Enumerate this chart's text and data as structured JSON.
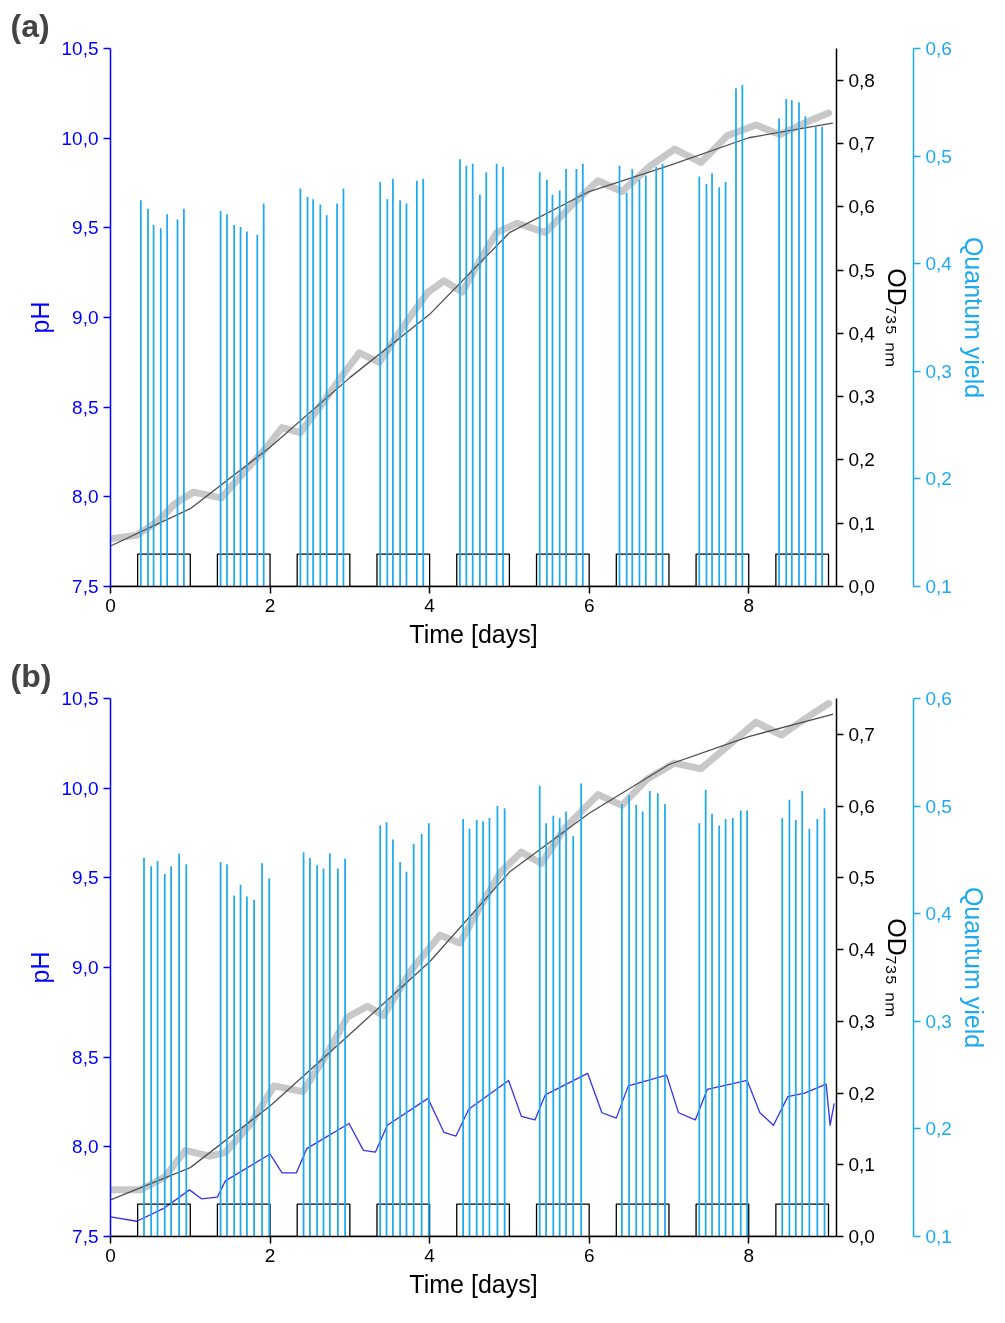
{
  "chart_data": [
    {
      "type": "line",
      "title": "(a)",
      "xlabel": "Time [days]",
      "ylabel": "pH",
      "y2label": "OD₇₃₅ ₙₘ",
      "y3label": "Quantum yield",
      "xlim": [
        0,
        9.1
      ],
      "xticks": [
        0,
        2,
        4,
        6,
        8
      ],
      "ylim": [
        7.5,
        10.5
      ],
      "yticks": [
        {
          "value": 7.5,
          "label": "7,5"
        },
        {
          "value": 8.0,
          "label": "8,0"
        },
        {
          "value": 8.5,
          "label": "8,5"
        },
        {
          "value": 9.0,
          "label": "9,0"
        },
        {
          "value": 9.5,
          "label": "9,5"
        },
        {
          "value": 10.0,
          "label": "10,0"
        },
        {
          "value": 10.5,
          "label": "10,5"
        }
      ],
      "y2lim": [
        0,
        0.85
      ],
      "y2ticks": [
        {
          "value": 0,
          "label": "0,0"
        },
        {
          "value": 0.1,
          "label": "0,1"
        },
        {
          "value": 0.2,
          "label": "0,2"
        },
        {
          "value": 0.3,
          "label": "0,3"
        },
        {
          "value": 0.4,
          "label": "0,4"
        },
        {
          "value": 0.5,
          "label": "0,5"
        },
        {
          "value": 0.6,
          "label": "0,6"
        },
        {
          "value": 0.7,
          "label": "0,7"
        },
        {
          "value": 0.8,
          "label": "0,8"
        }
      ],
      "y3lim": [
        0.1,
        0.6
      ],
      "y3ticks": [
        {
          "value": 0.1,
          "label": "0,1"
        },
        {
          "value": 0.2,
          "label": "0,2"
        },
        {
          "value": 0.3,
          "label": "0,3"
        },
        {
          "value": 0.4,
          "label": "0,4"
        },
        {
          "value": 0.5,
          "label": "0,5"
        },
        {
          "value": 0.6,
          "label": "0,6"
        }
      ],
      "series": [
        {
          "type": "bar",
          "axis": "y3",
          "color": "#1eaaf1",
          "x": [
            0.38,
            0.47,
            0.54,
            0.63,
            0.71,
            0.84,
            0.92,
            1.38,
            1.46,
            1.55,
            1.63,
            1.71,
            1.84,
            1.92,
            2.38,
            2.47,
            2.54,
            2.63,
            2.71,
            2.84,
            2.92,
            3.38,
            3.47,
            3.54,
            3.63,
            3.71,
            3.84,
            3.92,
            4.38,
            4.46,
            4.54,
            4.63,
            4.71,
            4.84,
            4.92,
            5.38,
            5.47,
            5.54,
            5.63,
            5.71,
            5.84,
            5.92,
            6.38,
            6.47,
            6.54,
            6.63,
            6.71,
            6.84,
            6.92,
            7.38,
            7.47,
            7.54,
            7.63,
            7.71,
            7.84,
            7.92,
            8.38,
            8.47,
            8.54,
            8.63,
            8.71,
            8.84,
            8.92
          ],
          "values": [
            0.459,
            0.451,
            0.436,
            0.433,
            0.446,
            0.441,
            0.451,
            0.449,
            0.446,
            0.436,
            0.434,
            0.43,
            0.427,
            0.456,
            0.47,
            0.462,
            0.46,
            0.455,
            0.445,
            0.456,
            0.47,
            0.476,
            0.46,
            0.479,
            0.459,
            0.456,
            0.477,
            0.479,
            0.497,
            0.491,
            0.493,
            0.464,
            0.485,
            0.493,
            0.49,
            0.485,
            0.478,
            0.464,
            0.468,
            0.488,
            0.488,
            0.493,
            0.491,
            0.466,
            0.488,
            0.478,
            0.482,
            0.49,
            0.493,
            0.481,
            0.474,
            0.484,
            0.471,
            0.476,
            0.563,
            0.566,
            0.535,
            0.553,
            0.552,
            0.55,
            0.537,
            0.527,
            0.527
          ]
        },
        {
          "axis": "y2",
          "color": "#c8c8c8",
          "x": [
            0.03,
            0.33,
            0.58,
            0.81,
            1.04,
            1.39,
            1.7,
            1.95,
            2.15,
            2.38,
            2.66,
            2.92,
            3.12,
            3.37,
            3.68,
            3.98,
            4.18,
            4.41,
            4.64,
            4.84,
            5.1,
            5.45,
            5.81,
            6.11,
            6.41,
            6.77,
            7.07,
            7.4,
            7.73,
            8.09,
            8.39,
            8.75,
            9.0
          ],
          "values": [
            0.076,
            0.081,
            0.102,
            0.131,
            0.149,
            0.14,
            0.184,
            0.219,
            0.251,
            0.243,
            0.29,
            0.336,
            0.369,
            0.354,
            0.413,
            0.465,
            0.483,
            0.465,
            0.518,
            0.559,
            0.574,
            0.559,
            0.606,
            0.641,
            0.624,
            0.665,
            0.691,
            0.67,
            0.712,
            0.729,
            0.714,
            0.735,
            0.748
          ]
        },
        {
          "axis": "y2",
          "color": "#505050",
          "x": [
            0,
            1,
            2,
            3,
            4,
            5,
            6,
            7,
            8,
            9.05
          ],
          "values": [
            0.064,
            0.123,
            0.22,
            0.33,
            0.43,
            0.559,
            0.624,
            0.665,
            0.709,
            0.732
          ]
        },
        {
          "axis": "y",
          "color": "#000000",
          "x": [
            0,
            0.34,
            0.34,
            1,
            1,
            1.34,
            1.34,
            2,
            2,
            2.34,
            2.34,
            3,
            3,
            3.34,
            3.34,
            4,
            4,
            4.34,
            4.34,
            5,
            5,
            5.34,
            5.34,
            6,
            6,
            6.34,
            6.34,
            7,
            7,
            7.34,
            7.34,
            8,
            8,
            8.34,
            8.34,
            9,
            9
          ],
          "values": [
            7.5,
            7.5,
            7.68,
            7.68,
            7.5,
            7.5,
            7.68,
            7.68,
            7.5,
            7.5,
            7.68,
            7.68,
            7.5,
            7.5,
            7.68,
            7.68,
            7.5,
            7.5,
            7.68,
            7.68,
            7.5,
            7.5,
            7.68,
            7.68,
            7.5,
            7.5,
            7.68,
            7.68,
            7.5,
            7.5,
            7.68,
            7.68,
            7.5,
            7.5,
            7.68,
            7.68,
            7.5
          ]
        }
      ]
    },
    {
      "type": "line",
      "title": "(b)",
      "xlabel": "Time [days]",
      "ylabel": "pH",
      "y2label": "OD₇₃₅ ₙₘ",
      "y3label": "Quantum yield",
      "xlim": [
        0,
        9.1
      ],
      "xticks": [
        0,
        2,
        4,
        6,
        8
      ],
      "ylim": [
        7.5,
        10.5
      ],
      "yticks": [
        {
          "value": 7.5,
          "label": "7,5"
        },
        {
          "value": 8.0,
          "label": "8,0"
        },
        {
          "value": 8.5,
          "label": "8,5"
        },
        {
          "value": 9.0,
          "label": "9,0"
        },
        {
          "value": 9.5,
          "label": "9,5"
        },
        {
          "value": 10.0,
          "label": "10,0"
        },
        {
          "value": 10.5,
          "label": "10,5"
        }
      ],
      "y2lim": [
        0,
        0.75
      ],
      "y2ticks": [
        {
          "value": 0,
          "label": "0,0"
        },
        {
          "value": 0.1,
          "label": "0,1"
        },
        {
          "value": 0.2,
          "label": "0,2"
        },
        {
          "value": 0.3,
          "label": "0,3"
        },
        {
          "value": 0.4,
          "label": "0,4"
        },
        {
          "value": 0.5,
          "label": "0,5"
        },
        {
          "value": 0.6,
          "label": "0,6"
        },
        {
          "value": 0.7,
          "label": "0,7"
        }
      ],
      "y3lim": [
        0.1,
        0.6
      ],
      "y3ticks": [
        {
          "value": 0.1,
          "label": "0,1"
        },
        {
          "value": 0.2,
          "label": "0,2"
        },
        {
          "value": 0.3,
          "label": "0,3"
        },
        {
          "value": 0.4,
          "label": "0,4"
        },
        {
          "value": 0.5,
          "label": "0,5"
        },
        {
          "value": 0.6,
          "label": "0,6"
        }
      ],
      "series": [
        {
          "type": "bar",
          "axis": "y3",
          "color": "#1eaaf1",
          "x": [
            0.42,
            0.51,
            0.59,
            0.68,
            0.76,
            0.86,
            0.95,
            1.38,
            1.46,
            1.55,
            1.63,
            1.71,
            1.8,
            1.9,
            1.99,
            2.42,
            2.5,
            2.59,
            2.67,
            2.75,
            2.85,
            2.94,
            3.38,
            3.46,
            3.54,
            3.63,
            3.71,
            3.8,
            3.9,
            3.99,
            4.42,
            4.5,
            4.59,
            4.67,
            4.75,
            4.85,
            4.94,
            5.38,
            5.46,
            5.55,
            5.63,
            5.71,
            5.8,
            5.9,
            6.41,
            6.5,
            6.59,
            6.67,
            6.76,
            6.86,
            6.95,
            7.38,
            7.46,
            7.54,
            7.63,
            7.71,
            7.8,
            7.9,
            7.98,
            8.42,
            8.51,
            8.59,
            8.67,
            8.76,
            8.86,
            8.95
          ],
          "values": [
            0.452,
            0.444,
            0.449,
            0.437,
            0.444,
            0.456,
            0.446,
            0.448,
            0.446,
            0.417,
            0.427,
            0.416,
            0.413,
            0.447,
            0.433,
            0.457,
            0.452,
            0.445,
            0.442,
            0.456,
            0.442,
            0.451,
            0.482,
            0.485,
            0.469,
            0.448,
            0.439,
            0.465,
            0.474,
            0.484,
            0.488,
            0.479,
            0.487,
            0.486,
            0.489,
            0.5,
            0.498,
            0.519,
            0.484,
            0.491,
            0.489,
            0.495,
            0.472,
            0.521,
            0.502,
            0.51,
            0.501,
            0.495,
            0.514,
            0.512,
            0.502,
            0.484,
            0.515,
            0.493,
            0.482,
            0.488,
            0.489,
            0.496,
            0.496,
            0.489,
            0.506,
            0.487,
            0.514,
            0.479,
            0.488,
            0.498
          ]
        },
        {
          "axis": "y2",
          "color": "#c8c8c8",
          "x": [
            0.03,
            0.38,
            0.68,
            0.94,
            1.24,
            1.44,
            1.75,
            2.05,
            2.41,
            2.71,
            2.97,
            3.22,
            3.42,
            3.78,
            4.13,
            4.38,
            4.64,
            4.89,
            5.15,
            5.4,
            5.7,
            6.11,
            6.41,
            6.72,
            7.07,
            7.4,
            7.73,
            8.09,
            8.41,
            8.75,
            9.0
          ],
          "values": [
            0.065,
            0.065,
            0.083,
            0.12,
            0.112,
            0.117,
            0.156,
            0.21,
            0.202,
            0.254,
            0.306,
            0.321,
            0.308,
            0.373,
            0.42,
            0.409,
            0.461,
            0.508,
            0.536,
            0.52,
            0.57,
            0.616,
            0.601,
            0.637,
            0.66,
            0.652,
            0.683,
            0.717,
            0.699,
            0.725,
            0.743
          ]
        },
        {
          "axis": "y2",
          "color": "#505050",
          "x": [
            0,
            1,
            2,
            3,
            4,
            5,
            6,
            7,
            8,
            9.05
          ],
          "values": [
            0.051,
            0.096,
            0.182,
            0.282,
            0.383,
            0.508,
            0.59,
            0.658,
            0.697,
            0.728
          ]
        },
        {
          "axis": "y",
          "color": "#3333ee",
          "x": [
            0,
            0.33,
            0.68,
            0.99,
            1.14,
            1.34,
            1.44,
            2.0,
            2.15,
            2.33,
            2.46,
            2.99,
            3.17,
            3.32,
            3.47,
            3.98,
            4.18,
            4.33,
            4.49,
            4.99,
            5.15,
            5.32,
            5.45,
            5.98,
            6.16,
            6.34,
            6.49,
            6.97,
            7.12,
            7.33,
            7.48,
            7.98,
            8.14,
            8.31,
            8.49,
            8.7,
            8.97,
            9.02,
            9.07
          ],
          "values": [
            7.61,
            7.585,
            7.66,
            7.76,
            7.71,
            7.72,
            7.81,
            7.96,
            7.855,
            7.855,
            7.99,
            8.13,
            7.98,
            7.97,
            8.12,
            8.27,
            8.08,
            8.06,
            8.21,
            8.37,
            8.17,
            8.15,
            8.29,
            8.41,
            8.19,
            8.16,
            8.34,
            8.4,
            8.19,
            8.15,
            8.32,
            8.37,
            8.19,
            8.12,
            8.28,
            8.3,
            8.35,
            8.12,
            8.24
          ]
        },
        {
          "axis": "y",
          "color": "#000000",
          "x": [
            0,
            0.34,
            0.34,
            1,
            1,
            1.34,
            1.34,
            2,
            2,
            2.34,
            2.34,
            3,
            3,
            3.34,
            3.34,
            4,
            4,
            4.34,
            4.34,
            5,
            5,
            5.34,
            5.34,
            6,
            6,
            6.34,
            6.34,
            7,
            7,
            7.34,
            7.34,
            8,
            8,
            8.34,
            8.34,
            9,
            9
          ],
          "values": [
            7.5,
            7.5,
            7.68,
            7.68,
            7.5,
            7.5,
            7.68,
            7.68,
            7.5,
            7.5,
            7.68,
            7.68,
            7.5,
            7.5,
            7.68,
            7.68,
            7.5,
            7.5,
            7.68,
            7.68,
            7.5,
            7.5,
            7.68,
            7.68,
            7.5,
            7.5,
            7.68,
            7.68,
            7.5,
            7.5,
            7.68,
            7.68,
            7.5,
            7.5,
            7.68,
            7.68,
            7.5
          ]
        }
      ]
    }
  ]
}
